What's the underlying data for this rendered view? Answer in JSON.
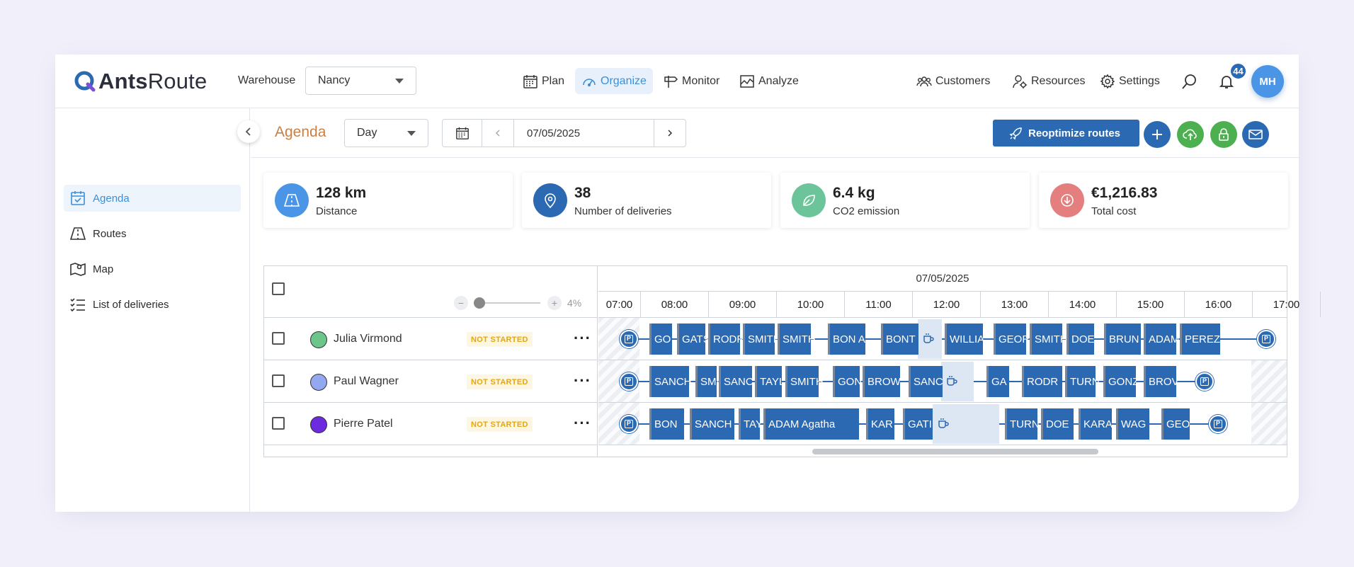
{
  "brand": {
    "name_bold": "Ants",
    "name_light": "Route"
  },
  "warehouse": {
    "label": "Warehouse",
    "value": "Nancy"
  },
  "nav": [
    {
      "label": "Plan",
      "icon": "calendar-icon",
      "active": false
    },
    {
      "label": "Organize",
      "icon": "speedometer-icon",
      "active": true
    },
    {
      "label": "Monitor",
      "icon": "signpost-icon",
      "active": false
    },
    {
      "label": "Analyze",
      "icon": "chart-icon",
      "active": false
    }
  ],
  "nav_right": [
    {
      "label": "Customers",
      "icon": "customers-icon"
    },
    {
      "label": "Resources",
      "icon": "resources-icon"
    },
    {
      "label": "Settings",
      "icon": "gear-icon"
    }
  ],
  "notifications": {
    "count": "44"
  },
  "user": {
    "initials": "MH"
  },
  "sidebar": {
    "items": [
      {
        "label": "Agenda",
        "icon": "calendar-check-icon",
        "active": true
      },
      {
        "label": "Routes",
        "icon": "road-icon",
        "active": false
      },
      {
        "label": "Map",
        "icon": "map-icon",
        "active": false
      },
      {
        "label": "List of deliveries",
        "icon": "list-icon",
        "active": false
      }
    ]
  },
  "toolbar": {
    "title": "Agenda",
    "view": "Day",
    "date": "07/05/2025",
    "reoptimize_label": "Reoptimize routes"
  },
  "kpis": [
    {
      "value": "128 km",
      "label": "Distance",
      "color": "#4a95e6"
    },
    {
      "value": "38",
      "label": "Number of deliveries",
      "color": "#2c69b3"
    },
    {
      "value": "6.4 kg",
      "label": "CO2 emission",
      "color": "#6cc59a"
    },
    {
      "value": "€1,216.83",
      "label": "Total cost",
      "color": "#e57f7f"
    }
  ],
  "agenda": {
    "zoom": "4%",
    "date_header": "07/05/2025",
    "hours": [
      "07:00",
      "08:00",
      "09:00",
      "10:00",
      "11:00",
      "12:00",
      "13:00",
      "14:00",
      "15:00",
      "16:00",
      "17:00"
    ],
    "status_label": "NOT STARTED",
    "drivers": [
      {
        "name": "Julia Virmond",
        "color": "#6cc58a",
        "stops": [
          "GO",
          "GATS",
          "RODR",
          "SMITH",
          "SMITH",
          "BON A",
          "BONT",
          "WILLIA",
          "GEOR",
          "SMITH",
          "DOE",
          "BRUN",
          "ADAM",
          "PEREZ"
        ]
      },
      {
        "name": "Paul Wagner",
        "color": "#93a8ef",
        "stops": [
          "SANCH",
          "SMI",
          "SANC",
          "TAYL",
          "SMITH",
          "GON",
          "BROW",
          "SANC",
          "GA",
          "RODR",
          "TURN",
          "GONZ",
          "BROV"
        ]
      },
      {
        "name": "Pierre Patel",
        "color": "#6d2be0",
        "stops": [
          "BON",
          "SANCH",
          "TAY",
          "ADAM Agatha",
          "KAR",
          "GATI",
          "TURN",
          "DOE",
          "KARA",
          "WAG",
          "GEO"
        ]
      }
    ]
  },
  "colors": {
    "accent": "#2c69b3",
    "agenda_title": "#c98044",
    "status": "#e4a514"
  }
}
